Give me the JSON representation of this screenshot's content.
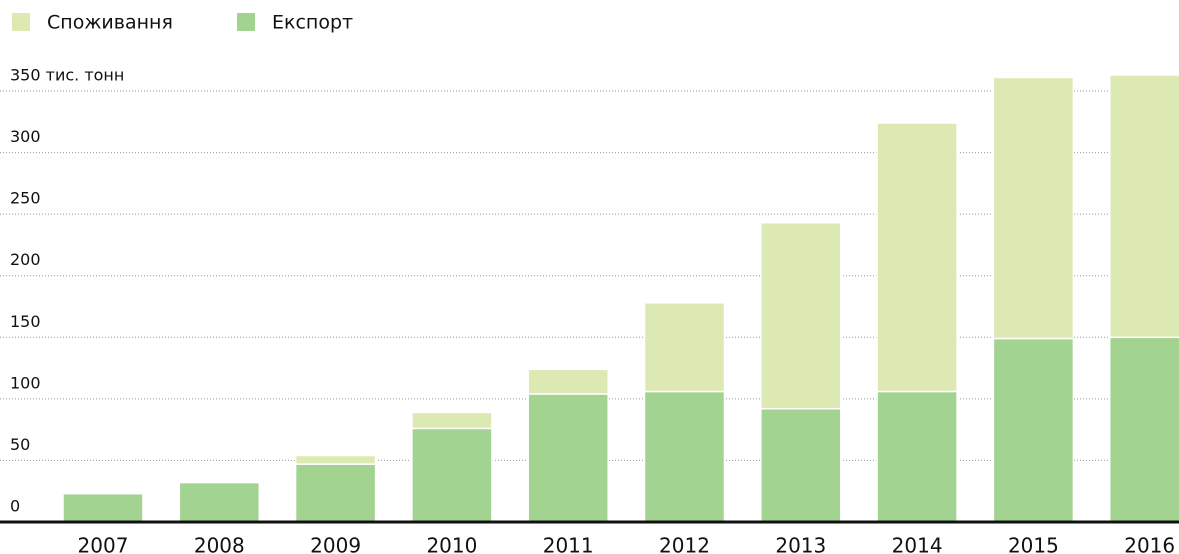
{
  "chart_data": {
    "type": "stacked_bar",
    "categories": [
      "2007",
      "2008",
      "2009",
      "2010",
      "2011",
      "2012",
      "2013",
      "2014",
      "2015",
      "2016"
    ],
    "series": [
      {
        "name": "Споживання",
        "color": "#dde9b3",
        "values": [
          0,
          0,
          7,
          13,
          20,
          72,
          151,
          218,
          212,
          213
        ]
      },
      {
        "name": "Експорт",
        "color": "#a3d391",
        "values": [
          23,
          32,
          47,
          76,
          104,
          106,
          92,
          106,
          149,
          150
        ]
      }
    ],
    "ylim": [
      0,
      365
    ],
    "yticks": [
      0,
      50,
      100,
      150,
      200,
      250,
      300,
      {
        "value": 350,
        "label": "350 тис. тонн"
      }
    ],
    "grid": true
  }
}
